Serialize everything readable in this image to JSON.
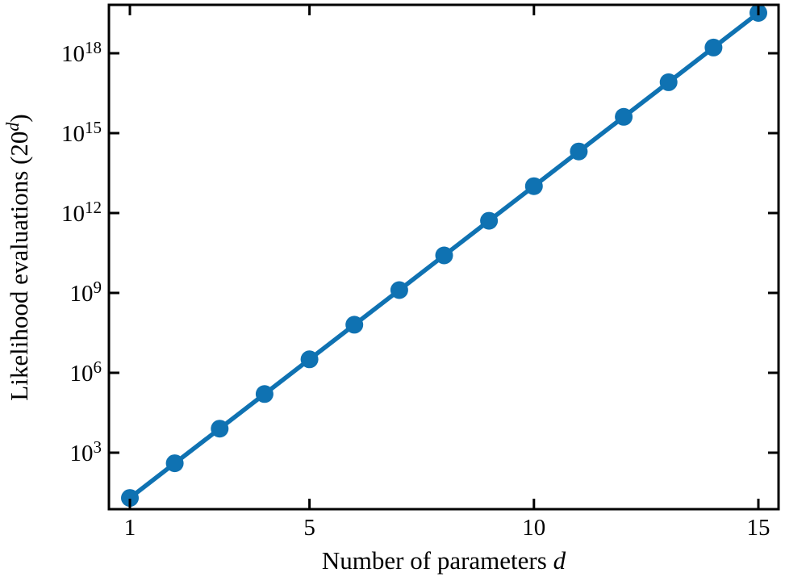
{
  "figure": {
    "background": "#ffffff",
    "axis_color": "#000000",
    "series_color": "#0f72b2"
  },
  "chart_data": {
    "type": "line",
    "title": "",
    "xlabel": "Number of parameters d",
    "ylabel": "Likelihood evaluations (20^d)",
    "xlabel_parts": {
      "prefix": "Number of parameters ",
      "italic_var": "d"
    },
    "ylabel_parts": {
      "prefix": "Likelihood evaluations (20",
      "sup_italic": "d",
      "suffix": ")"
    },
    "xscale": "linear",
    "yscale": "log",
    "grid": false,
    "legend": null,
    "marker": "circle",
    "x": [
      1,
      2,
      3,
      4,
      5,
      6,
      7,
      8,
      9,
      10,
      11,
      12,
      13,
      14,
      15
    ],
    "values": [
      20,
      400,
      8000,
      160000,
      3200000,
      64000000,
      1280000000,
      25600000000,
      512000000000,
      10240000000000,
      204800000000000,
      4096000000000000,
      81920000000000000,
      1638400000000000000,
      32768000000000000000
    ],
    "xticks": [
      1,
      5,
      10,
      15
    ],
    "xtick_labels": [
      "1",
      "5",
      "10",
      "15"
    ],
    "ytick_base": "10",
    "ytick_exponents": [
      3,
      6,
      9,
      12,
      15,
      18
    ],
    "xlim": [
      0.53,
      15.45
    ],
    "ylim_exponents": [
      0.88,
      19.82
    ]
  }
}
